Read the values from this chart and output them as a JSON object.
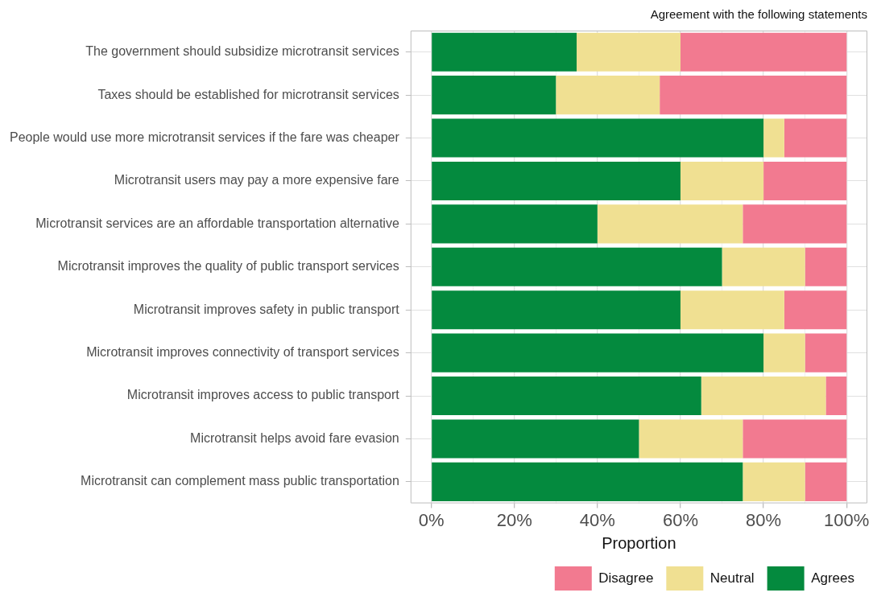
{
  "chart_data": {
    "type": "bar",
    "orientation": "horizontal",
    "stacked": true,
    "title": "Agreement with the following statements",
    "xlabel": "Proportion",
    "categories": [
      "The government should subsidize microtransit services",
      "Taxes should be established for microtransit services",
      "People would use more microtransit services if the fare was cheaper",
      "Microtransit users may pay a more expensive fare",
      "Microtransit services are an affordable transportation alternative",
      "Microtransit improves the quality of public transport services",
      "Microtransit improves safety in public transport",
      "Microtransit improves connectivity of transport services",
      "Microtransit improves access to public transport",
      "Microtransit helps avoid fare evasion",
      "Microtransit can complement mass public transportation"
    ],
    "series": [
      {
        "name": "Agrees",
        "color": "#048a3e",
        "values": [
          35,
          30,
          80,
          60,
          40,
          70,
          60,
          80,
          65,
          50,
          75
        ]
      },
      {
        "name": "Neutral",
        "color": "#f0e092",
        "values": [
          25,
          25,
          5,
          20,
          35,
          20,
          25,
          10,
          30,
          25,
          15
        ]
      },
      {
        "name": "Disagree",
        "color": "#f27a90",
        "values": [
          40,
          45,
          15,
          20,
          25,
          10,
          15,
          10,
          5,
          25,
          10
        ]
      }
    ],
    "xlim": [
      -5,
      105
    ],
    "xticks": [
      {
        "value": 0,
        "label": "0%"
      },
      {
        "value": 10,
        "label": null
      },
      {
        "value": 20,
        "label": "20%"
      },
      {
        "value": 30,
        "label": null
      },
      {
        "value": 40,
        "label": "40%"
      },
      {
        "value": 50,
        "label": null
      },
      {
        "value": 60,
        "label": "60%"
      },
      {
        "value": 70,
        "label": null
      },
      {
        "value": 80,
        "label": "80%"
      },
      {
        "value": 90,
        "label": null
      },
      {
        "value": 100,
        "label": "100%"
      }
    ],
    "grid": true,
    "legend": "bottom"
  }
}
